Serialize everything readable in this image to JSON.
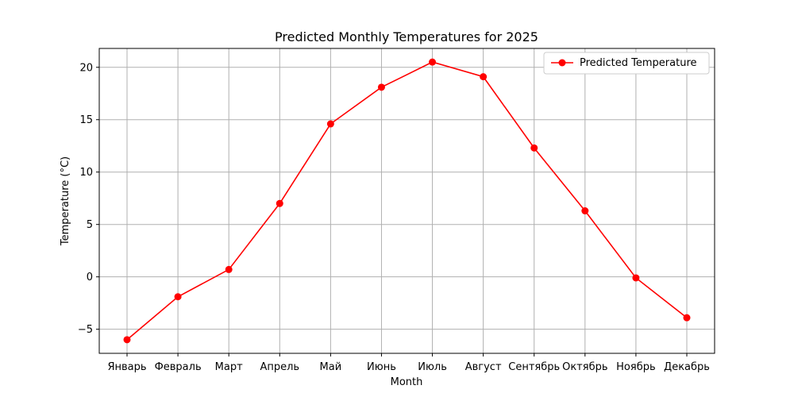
{
  "chart_data": {
    "type": "line",
    "title": "Predicted Monthly Temperatures for 2025",
    "xlabel": "Month",
    "ylabel": "Temperature (°C)",
    "categories": [
      "Январь",
      "Февраль",
      "Март",
      "Апрель",
      "Май",
      "Июнь",
      "Июль",
      "Август",
      "Сентябрь",
      "Октябрь",
      "Ноябрь",
      "Декабрь"
    ],
    "series": [
      {
        "name": "Predicted Temperature",
        "color": "#ff0000",
        "marker": "circle",
        "values": [
          -6.0,
          -1.9,
          0.7,
          7.0,
          14.6,
          18.1,
          20.5,
          19.1,
          12.3,
          6.3,
          -0.1,
          -3.9
        ]
      }
    ],
    "ylim": [
      -7.3,
      21.8
    ],
    "yticks": [
      -5,
      0,
      5,
      10,
      15,
      20
    ],
    "ytick_labels": [
      "−5",
      "0",
      "5",
      "10",
      "15",
      "20"
    ],
    "grid": true,
    "legend_position": "top-right"
  }
}
